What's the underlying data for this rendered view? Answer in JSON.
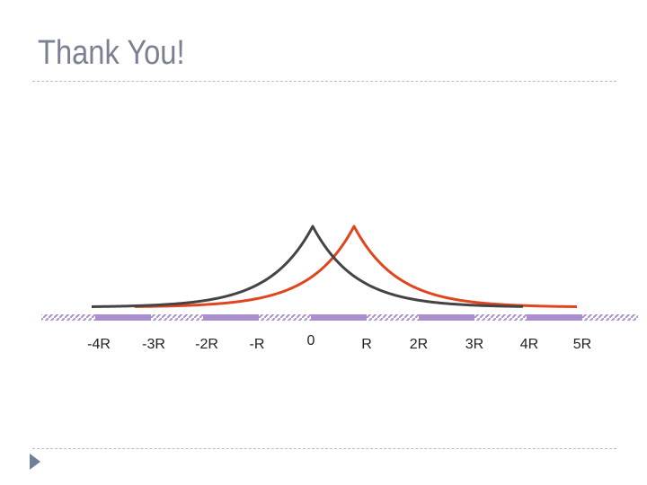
{
  "slide": {
    "title": "Thank You!"
  },
  "axis": {
    "ticks": [
      "-4R",
      "-3R",
      "-2R",
      "-R",
      "0",
      "R",
      "2R",
      "3R",
      "4R",
      "5R"
    ]
  },
  "colors": {
    "title": "#7b8193",
    "curve_a": "#444444",
    "curve_b": "#e0461e",
    "segments": "#a98fcc",
    "hatch": "#a98fcc"
  }
}
